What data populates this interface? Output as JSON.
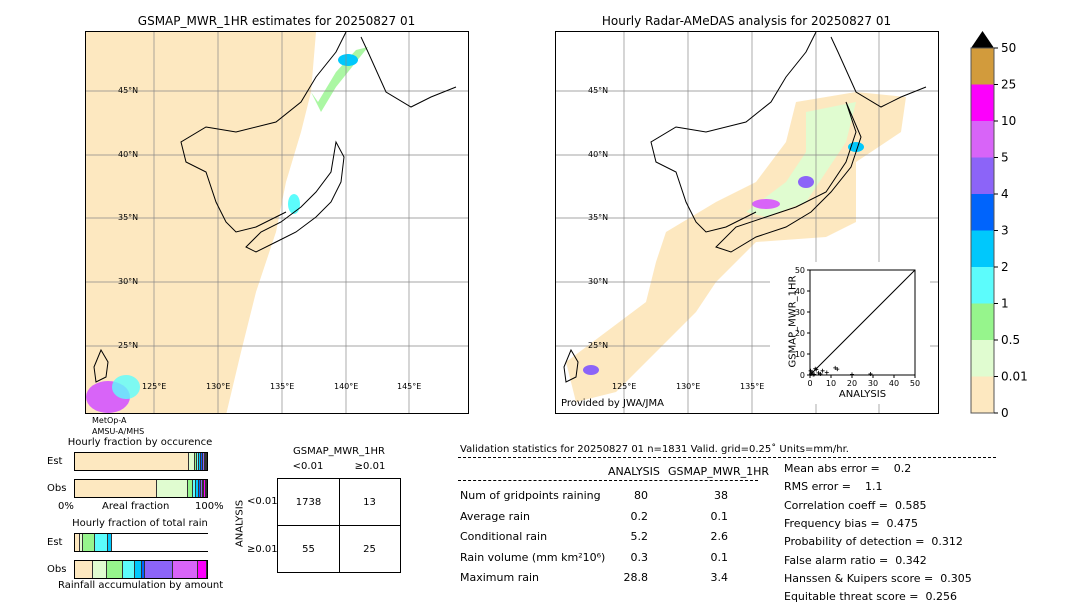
{
  "left_map": {
    "title": "GSMAP_MWR_1HR estimates for 20250827 01",
    "lat_labels": [
      "45°N",
      "40°N",
      "35°N",
      "30°N",
      "25°N"
    ],
    "lon_labels": [
      "125°E",
      "130°E",
      "135°E",
      "140°E",
      "145°E"
    ],
    "satellite_label_1": "MetOp-A",
    "satellite_label_2": "AMSU-A/MHS"
  },
  "right_map": {
    "title": "Hourly Radar-AMeDAS analysis for 20250827 01",
    "lat_labels": [
      "45°N",
      "40°N",
      "35°N",
      "30°N",
      "25°N"
    ],
    "lon_labels": [
      "125°E",
      "130°E",
      "135°E"
    ],
    "credit": "Provided by JWA/JMA"
  },
  "chart_data": [
    {
      "type": "scatter",
      "xlabel": "ANALYSIS",
      "ylabel": "GSMAP_MWR_1HR",
      "xlim": [
        0,
        50
      ],
      "ylim": [
        0,
        50
      ],
      "xticks": [
        "0",
        "10",
        "20",
        "30",
        "40",
        "50"
      ],
      "yticks": [
        "0",
        "10",
        "20",
        "30",
        "40",
        "50"
      ],
      "points": [
        [
          0.5,
          0.5
        ],
        [
          1,
          1.5
        ],
        [
          2,
          0.3
        ],
        [
          3,
          2.6
        ],
        [
          4,
          1
        ],
        [
          5,
          0.5
        ],
        [
          6,
          2
        ],
        [
          8,
          1.2
        ],
        [
          12,
          3.4
        ],
        [
          13,
          2.8
        ],
        [
          20,
          0.3
        ],
        [
          28.8,
          0.5
        ],
        [
          1.5,
          0.2
        ],
        [
          2.5,
          3
        ],
        [
          0.3,
          2
        ]
      ]
    },
    {
      "type": "bar",
      "title": "Hourly fraction by occurence",
      "categories": [
        "Est",
        "Obs"
      ],
      "xlabel": "Areal fraction",
      "xtick_left": "0%",
      "xtick_right": "100%",
      "series": [
        {
          "category": "Est",
          "fractions": [
            0.917,
            0.04,
            0.012,
            0.01,
            0.008,
            0.006,
            0.004,
            0.002,
            0.001,
            0.0
          ]
        },
        {
          "category": "Obs",
          "fractions": [
            0.665,
            0.245,
            0.03,
            0.02,
            0.013,
            0.01,
            0.006,
            0.006,
            0.003,
            0.002
          ]
        }
      ]
    },
    {
      "type": "bar",
      "title": "Hourly fraction of total rain",
      "categories": [
        "Est",
        "Obs"
      ],
      "xlabel": "Rainfall accumulation by amount",
      "series": [
        {
          "category": "Est",
          "fractions": [
            0.03,
            0.015,
            0.08,
            0.09,
            0.025,
            0,
            0,
            0,
            0,
            0
          ]
        },
        {
          "category": "Obs",
          "fractions": [
            0.135,
            0.105,
            0.125,
            0.09,
            0.045,
            0.02,
            0.22,
            0.195,
            0.065,
            0
          ]
        }
      ]
    },
    {
      "type": "table",
      "title": "GSMAP_MWR_1HR",
      "col_labels": [
        "<0.01",
        "≥0.01"
      ],
      "row_title": "ANALYSIS",
      "row_labels": [
        "<0.01",
        "≥0.01"
      ],
      "cells": [
        [
          "1738",
          "13"
        ],
        [
          "55",
          "25"
        ]
      ]
    }
  ],
  "colorbar": {
    "labels": [
      "0",
      "0.01",
      "0.5",
      "1",
      "2",
      "3",
      "4",
      "5",
      "10",
      "25",
      "50"
    ],
    "colors": [
      "#fde8c0",
      "#e0fcd0",
      "#96f58c",
      "#5cfcfc",
      "#00c8fc",
      "#0064fc",
      "#8c64f8",
      "#d864f8",
      "#fc00fc",
      "#d29b3c"
    ],
    "extend_color": "#000000"
  },
  "stats": {
    "header": "Validation statistics for 20250827 01  n=1831 Valid. grid=0.25˚ Units=mm/hr.",
    "col_analysis": "ANALYSIS",
    "col_gsmap": "GSMAP_MWR_1HR",
    "rows": [
      {
        "label": "Num of gridpoints raining",
        "analysis": "80",
        "gsmap": "38"
      },
      {
        "label": "Average rain",
        "analysis": "0.2",
        "gsmap": "0.1"
      },
      {
        "label": "Conditional rain",
        "analysis": "5.2",
        "gsmap": "2.6"
      },
      {
        "label": "Rain volume (mm km²10⁶)",
        "analysis": "0.3",
        "gsmap": "0.1"
      },
      {
        "label": "Maximum rain",
        "analysis": "28.8",
        "gsmap": "3.4"
      }
    ],
    "scores": [
      "Mean abs error =    0.2",
      "RMS error =    1.1",
      "Correlation coeff =  0.585",
      "Frequency bias =  0.475",
      "Probability of detection =  0.312",
      "False alarm ratio =  0.342",
      "Hanssen & Kuipers score =  0.305",
      "Equitable threat score =  0.256"
    ]
  }
}
